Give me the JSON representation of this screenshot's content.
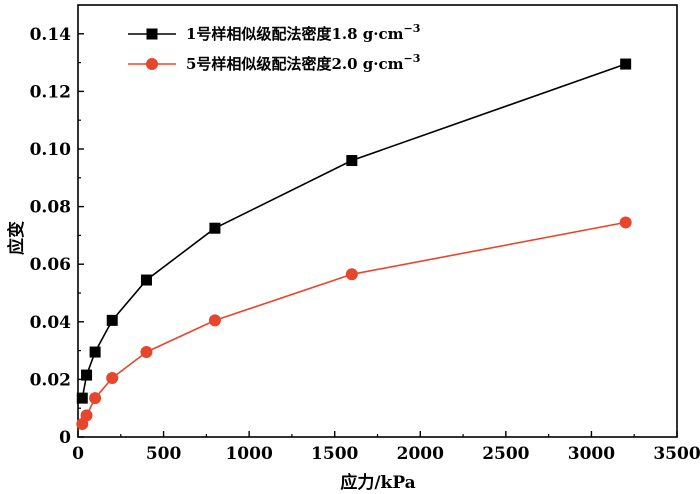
{
  "chart_data": {
    "type": "line",
    "title": "",
    "xlabel": "应力/kPa",
    "ylabel": "应变",
    "xlim": [
      0,
      3500
    ],
    "ylim": [
      0,
      0.15
    ],
    "x_ticks": [
      "0",
      "500",
      "1000",
      "1500",
      "2000",
      "2500",
      "3000",
      "3500"
    ],
    "y_ticks": [
      "0",
      "0.02",
      "0.04",
      "0.06",
      "0.08",
      "0.10",
      "0.12",
      "0.14"
    ],
    "grid": false,
    "legend_position": "top-left",
    "series": [
      {
        "name": "1号样相似级配法密度1.8 g·cm⁻³",
        "name_main": "1号样相似级配法密度1.8 g",
        "name_sup": "−3",
        "name_unit": "·cm",
        "color": "#000000",
        "marker": "square",
        "x": [
          25,
          50,
          100,
          200,
          400,
          800,
          1600,
          3200
        ],
        "y": [
          0.0135,
          0.0215,
          0.0295,
          0.0405,
          0.0545,
          0.0725,
          0.096,
          0.1295
        ]
      },
      {
        "name": "5号样相似级配法密度2.0 g·cm⁻³",
        "name_main": "5号样相似级配法密度2.0 g",
        "name_sup": "−3",
        "name_unit": "·cm",
        "color": "#e8462c",
        "marker": "circle",
        "x": [
          25,
          50,
          100,
          200,
          400,
          800,
          1600,
          3200
        ],
        "y": [
          0.0045,
          0.0075,
          0.0135,
          0.0205,
          0.0295,
          0.0405,
          0.0565,
          0.0745
        ]
      }
    ]
  }
}
